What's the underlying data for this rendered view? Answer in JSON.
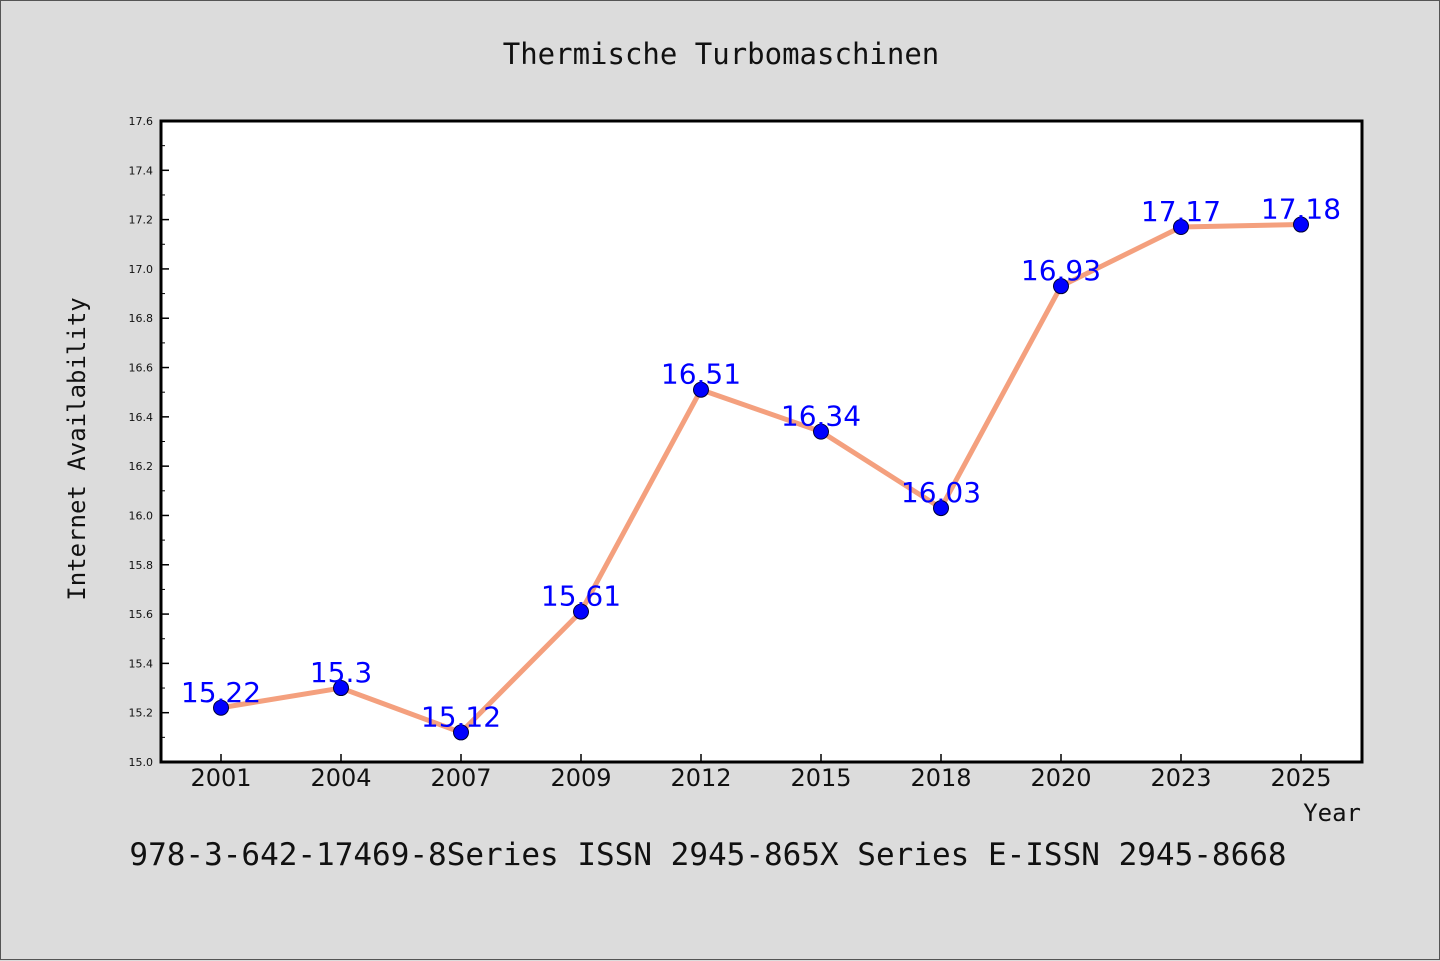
{
  "chart_data": {
    "type": "line",
    "title": "Thermische Turbomaschinen",
    "xlabel": "Year",
    "ylabel": "Internet Availability",
    "categories": [
      "2001",
      "2004",
      "2007",
      "2009",
      "2012",
      "2015",
      "2018",
      "2020",
      "2023",
      "2025"
    ],
    "values": [
      15.22,
      15.3,
      15.12,
      15.61,
      16.51,
      16.34,
      16.03,
      16.93,
      17.17,
      17.18
    ],
    "data_labels": [
      "15.22",
      "15.3",
      "15.12",
      "15.61",
      "16.51",
      "16.34",
      "16.03",
      "16.93",
      "17.17",
      "17.18"
    ],
    "ylim": [
      15.0,
      17.6
    ],
    "yticks": [
      "15.0",
      "15.2",
      "15.4",
      "15.6",
      "15.8",
      "16.0",
      "16.2",
      "16.4",
      "16.6",
      "16.8",
      "17.0",
      "17.2",
      "17.4",
      "17.6"
    ],
    "grid": false,
    "legend": "none",
    "line_color": "#f4a07e",
    "marker_color": "#0000ff",
    "label_color": "#0000ff",
    "footer_text": "978-3-642-17469-8Series ISSN 2945-865X Series E-ISSN 2945-8668"
  }
}
